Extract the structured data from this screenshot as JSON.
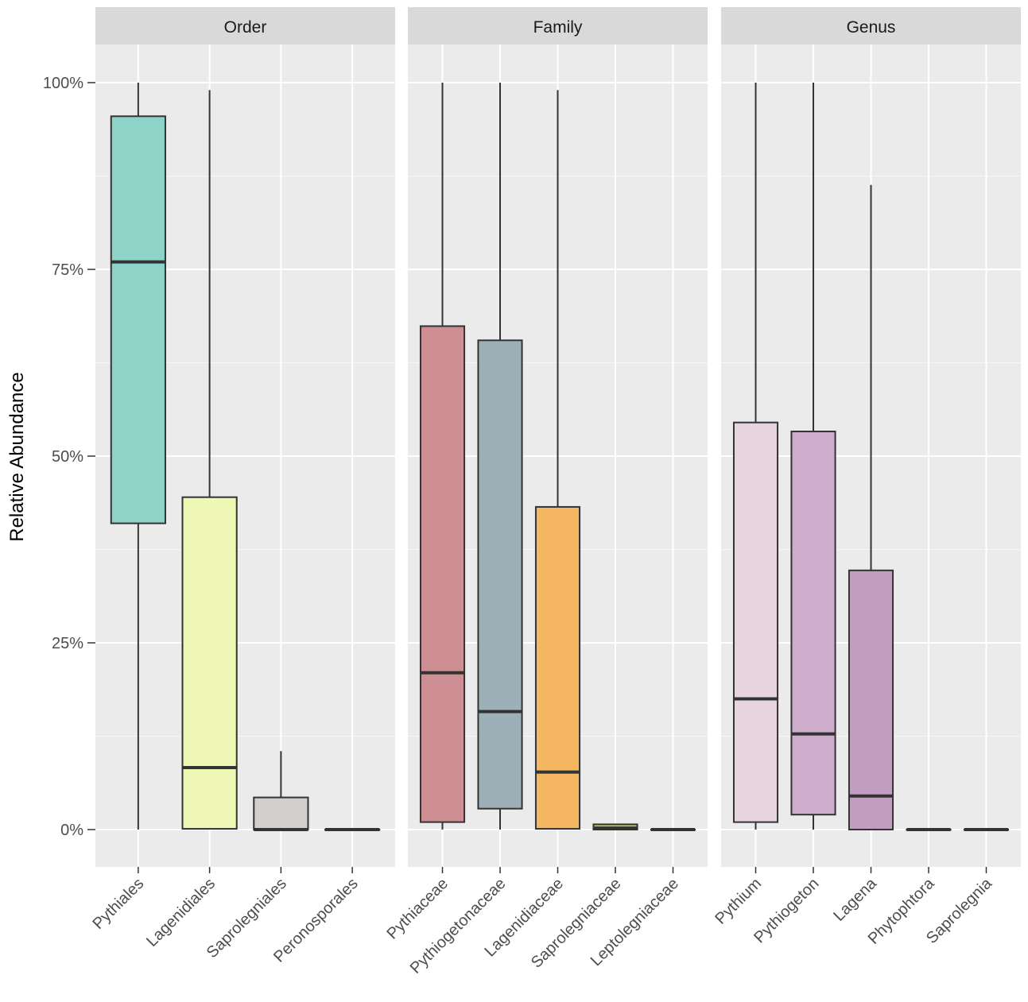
{
  "chart_data": {
    "type": "boxplot",
    "ylabel": "Relative Abundance",
    "ylim": [
      0,
      100
    ],
    "y_ticks": [
      {
        "value": 0,
        "label": "0%"
      },
      {
        "value": 25,
        "label": "25%"
      },
      {
        "value": 50,
        "label": "50%"
      },
      {
        "value": 75,
        "label": "75%"
      },
      {
        "value": 100,
        "label": "100%"
      }
    ],
    "panels": [
      {
        "title": "Order",
        "categories": [
          {
            "label": "Pythiales",
            "min": 0,
            "q1": 41,
            "median": 76,
            "q3": 95.5,
            "max": 100,
            "fill": "#8dd3c7"
          },
          {
            "label": "Lagenidiales",
            "min": 0,
            "q1": 0.1,
            "median": 8.3,
            "q3": 44.5,
            "max": 99,
            "fill": "#eef8b4"
          },
          {
            "label": "Saprolegniales",
            "min": 0,
            "q1": 0,
            "median": 0,
            "q3": 4.3,
            "max": 10.5,
            "fill": "#d3cfcf"
          },
          {
            "label": "Peronosporales",
            "min": 0,
            "q1": 0,
            "median": 0,
            "q3": 0,
            "max": 0,
            "fill": "#c9c4ce"
          }
        ]
      },
      {
        "title": "Family",
        "categories": [
          {
            "label": "Pythiaceae",
            "min": 0,
            "q1": 1,
            "median": 21,
            "q3": 67.4,
            "max": 100,
            "fill": "#cd8f94"
          },
          {
            "label": "Pythiogetonaceae",
            "min": 0,
            "q1": 2.8,
            "median": 15.8,
            "q3": 65.5,
            "max": 100,
            "fill": "#9eb0b7"
          },
          {
            "label": "Lagenidiaceae",
            "min": 0,
            "q1": 0.1,
            "median": 7.7,
            "q3": 43.2,
            "max": 99,
            "fill": "#f6b762"
          },
          {
            "label": "Saprolegniaceae",
            "min": 0,
            "q1": 0,
            "median": 0.2,
            "q3": 0.7,
            "max": 0.8,
            "fill": "#b2d25a"
          },
          {
            "label": "Leptolegniaceae",
            "min": 0,
            "q1": 0,
            "median": 0,
            "q3": 0,
            "max": 0,
            "fill": "#f3c8d2"
          }
        ]
      },
      {
        "title": "Genus",
        "categories": [
          {
            "label": "Pythium",
            "min": 0,
            "q1": 1,
            "median": 17.5,
            "q3": 54.5,
            "max": 100,
            "fill": "#e6d5de"
          },
          {
            "label": "Pythiogeton",
            "min": 0,
            "q1": 2,
            "median": 12.8,
            "q3": 53.3,
            "max": 100,
            "fill": "#cfaecd"
          },
          {
            "label": "Lagena",
            "min": 0,
            "q1": 0,
            "median": 4.5,
            "q3": 34.7,
            "max": 86.3,
            "fill": "#c39dbf"
          },
          {
            "label": "Phytophtora",
            "min": 0,
            "q1": 0,
            "median": 0,
            "q3": 0,
            "max": 0,
            "fill": "#c5a0c1"
          },
          {
            "label": "Saprolegnia",
            "min": 0,
            "q1": 0,
            "median": 0,
            "q3": 0,
            "max": 0,
            "fill": "#cfd9b9"
          }
        ]
      }
    ]
  }
}
